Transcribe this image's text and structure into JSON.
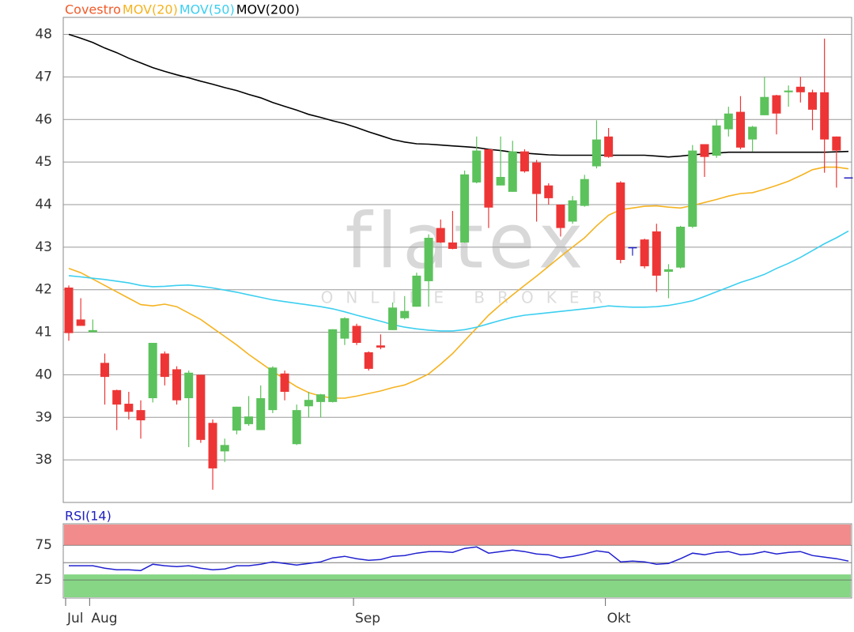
{
  "chart_data": [
    {
      "type": "candlestick",
      "name": "Covestro",
      "name_color": "#f05a28",
      "watermark": "flatex",
      "watermark_tagline": "ONLINE BROKER",
      "categories": [
        "Jul",
        null,
        "Aug",
        null,
        null,
        null,
        null,
        null,
        null,
        null,
        null,
        null,
        null,
        null,
        null,
        null,
        null,
        null,
        null,
        null,
        null,
        null,
        null,
        null,
        "Sep",
        null,
        null,
        null,
        null,
        null,
        null,
        null,
        null,
        null,
        null,
        null,
        null,
        null,
        null,
        null,
        null,
        null,
        null,
        null,
        null,
        "Okt",
        null,
        null,
        null,
        null,
        null,
        null,
        null,
        null,
        null,
        null,
        null,
        null,
        null,
        null,
        null,
        null,
        null,
        null,
        null,
        null
      ],
      "open": [
        42.05,
        41.3,
        41.0,
        40.28,
        39.64,
        39.32,
        39.17,
        39.45,
        40.5,
        40.13,
        39.45,
        40.0,
        38.87,
        38.2,
        38.69,
        38.84,
        38.7,
        39.17,
        40.03,
        38.37,
        39.26,
        39.36,
        39.36,
        40.85,
        41.15,
        40.53,
        40.69,
        41.05,
        41.33,
        41.6,
        42.2,
        43.45,
        43.11,
        43.11,
        44.52,
        45.3,
        44.45,
        44.3,
        45.25,
        44.99,
        44.45,
        44.0,
        43.6,
        43.97,
        44.9,
        45.6,
        44.52,
        43.0,
        43.18,
        43.37,
        42.42,
        42.52,
        43.48,
        45.42,
        45.15,
        45.77,
        46.18,
        45.53,
        46.1,
        46.57,
        46.64,
        46.77,
        46.64,
        46.64,
        45.6,
        44.64
      ],
      "high": [
        42.1,
        41.8,
        41.3,
        40.5,
        39.65,
        39.6,
        39.4,
        40.75,
        40.55,
        40.2,
        40.1,
        40.0,
        38.95,
        38.5,
        39.25,
        39.5,
        39.75,
        40.2,
        40.1,
        39.3,
        39.6,
        39.55,
        41.07,
        41.35,
        41.2,
        40.55,
        40.95,
        41.7,
        41.85,
        42.4,
        43.3,
        43.65,
        43.85,
        44.8,
        45.6,
        45.3,
        45.6,
        45.5,
        45.3,
        45.05,
        44.5,
        44.0,
        44.2,
        44.7,
        45.98,
        45.8,
        44.55,
        43.0,
        43.2,
        43.55,
        42.6,
        43.5,
        45.4,
        45.42,
        46.0,
        46.3,
        46.55,
        45.85,
        47.0,
        46.58,
        46.8,
        47.0,
        46.7,
        47.9,
        45.6,
        44.64
      ],
      "low": [
        40.8,
        41.15,
        41.0,
        39.3,
        38.7,
        38.95,
        38.5,
        39.35,
        39.75,
        39.3,
        38.3,
        38.4,
        37.3,
        37.95,
        38.6,
        38.8,
        38.7,
        39.1,
        39.4,
        38.35,
        39.0,
        39.0,
        39.35,
        40.7,
        40.7,
        40.1,
        40.6,
        41.05,
        41.3,
        41.6,
        41.6,
        43.1,
        42.95,
        43.1,
        44.5,
        43.45,
        44.45,
        44.3,
        44.75,
        43.6,
        44.0,
        43.25,
        43.55,
        43.95,
        44.85,
        45.1,
        42.62,
        42.8,
        42.5,
        41.95,
        41.8,
        42.5,
        43.45,
        44.65,
        45.1,
        45.6,
        45.3,
        45.25,
        46.1,
        45.65,
        46.3,
        46.4,
        45.75,
        44.75,
        44.4,
        44.64
      ],
      "close": [
        40.98,
        41.15,
        41.05,
        39.95,
        39.3,
        39.13,
        38.93,
        40.75,
        39.95,
        39.4,
        40.05,
        38.47,
        37.8,
        38.35,
        39.25,
        39.02,
        39.45,
        40.17,
        39.6,
        39.17,
        39.41,
        39.54,
        41.07,
        41.33,
        40.75,
        40.14,
        40.64,
        41.58,
        41.5,
        42.33,
        43.22,
        43.11,
        42.96,
        44.71,
        45.27,
        43.93,
        44.65,
        45.25,
        44.78,
        44.25,
        44.15,
        43.45,
        44.1,
        44.6,
        45.53,
        45.12,
        42.7,
        43.0,
        42.55,
        42.33,
        42.48,
        43.48,
        45.27,
        45.12,
        45.86,
        46.14,
        45.34,
        45.83,
        46.53,
        46.14,
        46.68,
        46.64,
        46.23,
        45.53,
        45.27,
        44.64
      ],
      "up_color": "#5cc25c",
      "down_color": "#ee3535",
      "neutral_color": "#2222c0",
      "series": [
        {
          "name": "MOV(20)",
          "color": "#f5b320",
          "values": [
            42.5,
            42.4,
            42.25,
            42.1,
            41.95,
            41.8,
            41.65,
            41.62,
            41.66,
            41.6,
            41.45,
            41.3,
            41.1,
            40.9,
            40.7,
            40.48,
            40.28,
            40.08,
            39.9,
            39.72,
            39.58,
            39.5,
            39.45,
            39.45,
            39.5,
            39.56,
            39.62,
            39.7,
            39.76,
            39.88,
            40.02,
            40.25,
            40.5,
            40.8,
            41.1,
            41.4,
            41.65,
            41.88,
            42.1,
            42.32,
            42.55,
            42.78,
            43.0,
            43.22,
            43.5,
            43.75,
            43.88,
            43.92,
            43.96,
            43.97,
            43.94,
            43.92,
            43.98,
            44.05,
            44.12,
            44.2,
            44.26,
            44.28,
            44.36,
            44.45,
            44.55,
            44.68,
            44.82,
            44.88,
            44.88,
            44.84
          ]
        },
        {
          "name": "MOV(50)",
          "color": "#3ccff0",
          "values": [
            42.33,
            42.3,
            42.27,
            42.24,
            42.2,
            42.16,
            42.1,
            42.07,
            42.08,
            42.1,
            42.11,
            42.08,
            42.04,
            41.99,
            41.94,
            41.88,
            41.82,
            41.76,
            41.72,
            41.68,
            41.64,
            41.6,
            41.55,
            41.48,
            41.4,
            41.33,
            41.26,
            41.18,
            41.12,
            41.08,
            41.05,
            41.03,
            41.03,
            41.06,
            41.12,
            41.2,
            41.28,
            41.35,
            41.4,
            41.43,
            41.46,
            41.49,
            41.52,
            41.55,
            41.58,
            41.62,
            41.6,
            41.59,
            41.59,
            41.6,
            41.63,
            41.68,
            41.74,
            41.84,
            41.95,
            42.06,
            42.17,
            42.26,
            42.36,
            42.5,
            42.62,
            42.76,
            42.92,
            43.08,
            43.22,
            43.38
          ]
        },
        {
          "name": "MOV(200)",
          "color": "#000000",
          "values": [
            48.0,
            47.91,
            47.81,
            47.68,
            47.57,
            47.44,
            47.33,
            47.22,
            47.13,
            47.05,
            46.98,
            46.9,
            46.83,
            46.75,
            46.68,
            46.59,
            46.51,
            46.4,
            46.31,
            46.22,
            46.12,
            46.05,
            45.97,
            45.9,
            45.81,
            45.71,
            45.62,
            45.53,
            45.47,
            45.43,
            45.42,
            45.4,
            45.38,
            45.36,
            45.34,
            45.3,
            45.27,
            45.23,
            45.21,
            45.19,
            45.17,
            45.16,
            45.16,
            45.16,
            45.16,
            45.16,
            45.16,
            45.16,
            45.16,
            45.14,
            45.12,
            45.14,
            45.17,
            45.19,
            45.21,
            45.23,
            45.23,
            45.23,
            45.23,
            45.23,
            45.23,
            45.23,
            45.23,
            45.23,
            45.24,
            45.25
          ]
        }
      ],
      "ylim": [
        37,
        48.4
      ],
      "yticks": [
        38,
        39,
        40,
        41,
        42,
        43,
        44,
        45,
        46,
        47,
        48
      ],
      "grid": true
    },
    {
      "type": "line",
      "title": "RSI(14)",
      "color": "#2020d0",
      "values": [
        45.5,
        45.5,
        45.5,
        42,
        39.8,
        39.8,
        38.6,
        47.7,
        45.5,
        44.3,
        45.5,
        42,
        39.8,
        40.9,
        45.5,
        45.5,
        47.7,
        51.1,
        48.9,
        46.6,
        48.9,
        51.1,
        56.8,
        59.1,
        55.7,
        53.4,
        54.5,
        59.1,
        60.2,
        63.6,
        65.9,
        65.9,
        64.8,
        70.5,
        72.7,
        63.6,
        65.9,
        68.2,
        65.9,
        62.5,
        61.4,
        56.8,
        59.1,
        62.5,
        67,
        64.8,
        51.1,
        52.3,
        51.1,
        47.7,
        48.9,
        55.7,
        63.6,
        61.4,
        64.8,
        65.9,
        61.4,
        62.5,
        65.9,
        62.5,
        64.8,
        65.9,
        60.2,
        58,
        55.7,
        52.3
      ],
      "bands": [
        {
          "from": 75,
          "to": 106,
          "color": "#f28b8b"
        },
        {
          "from": -1,
          "to": 33,
          "color": "#86d686"
        }
      ],
      "reference_line": 50,
      "ylim": [
        -1,
        106
      ],
      "yticks": [
        25,
        75
      ]
    }
  ]
}
